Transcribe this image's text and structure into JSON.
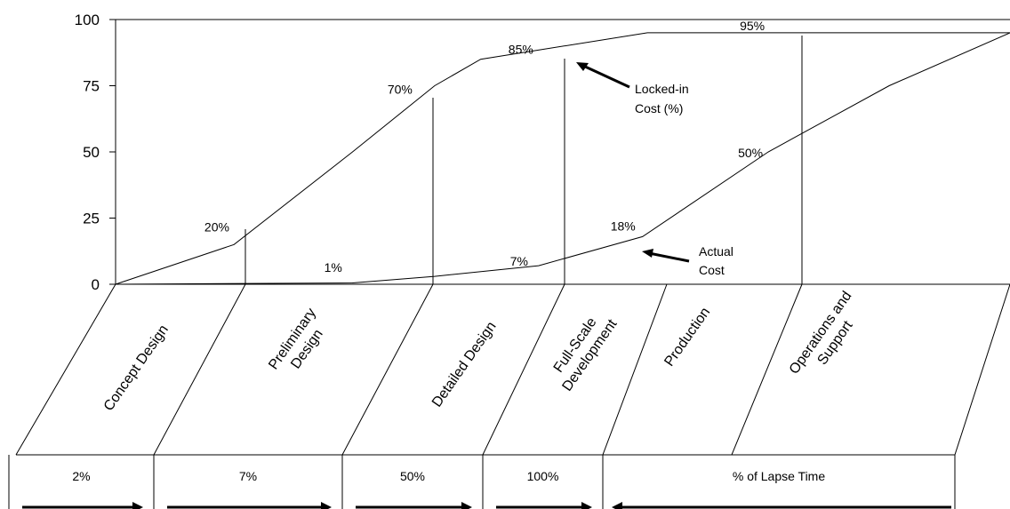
{
  "chart_data": {
    "type": "line",
    "y_ticks": [
      "0",
      "25",
      "50",
      "75",
      "100"
    ],
    "ylim": [
      0,
      100
    ],
    "grid": false,
    "series": [
      {
        "name": "Locked-in Cost (%)",
        "points": [
          [
            0,
            0
          ],
          [
            0.049,
            15
          ],
          [
            0.098,
            50
          ],
          [
            0.132,
            75
          ],
          [
            0.151,
            85
          ],
          [
            0.22,
            95
          ],
          [
            0.37,
            95
          ]
        ],
        "callouts": [
          {
            "x": 0.05,
            "y": 20,
            "label": "20%"
          },
          {
            "x": 0.125,
            "y": 70,
            "label": "70%"
          },
          {
            "x": 0.175,
            "y": 85,
            "label": "85%"
          },
          {
            "x": 0.27,
            "y": 95,
            "label": "95%"
          }
        ]
      },
      {
        "name": "Actual Cost",
        "points": [
          [
            0,
            0
          ],
          [
            0.098,
            0.5
          ],
          [
            0.132,
            3
          ],
          [
            0.175,
            7
          ],
          [
            0.218,
            18
          ],
          [
            0.27,
            50
          ],
          [
            0.32,
            75
          ],
          [
            0.37,
            95
          ]
        ],
        "callouts": [
          {
            "x": 0.09,
            "y": 1,
            "label": "1%"
          },
          {
            "x": 0.175,
            "y": 7,
            "label": "7%"
          },
          {
            "x": 0.218,
            "y": 18,
            "label": "18%"
          },
          {
            "x": 0.27,
            "y": 50,
            "label": "50%"
          }
        ]
      }
    ],
    "annotations": [
      {
        "id": "locked",
        "lines": [
          "Locked-in",
          "Cost (%)"
        ]
      },
      {
        "id": "actual",
        "lines": [
          "Actual",
          "Cost"
        ]
      }
    ],
    "phases": [
      {
        "lines": [
          "Concept Design"
        ]
      },
      {
        "lines": [
          "Preliminary",
          "Design"
        ]
      },
      {
        "lines": [
          "Detailed Design"
        ]
      },
      {
        "lines": [
          "Full-Scale",
          "Development"
        ]
      },
      {
        "lines": [
          "Production"
        ]
      },
      {
        "lines": [
          "Operations and",
          "Support"
        ]
      }
    ],
    "lapse_time": {
      "cells": [
        "2%",
        "7%",
        "50%",
        "100%"
      ],
      "label": "% of Lapse Time"
    }
  }
}
